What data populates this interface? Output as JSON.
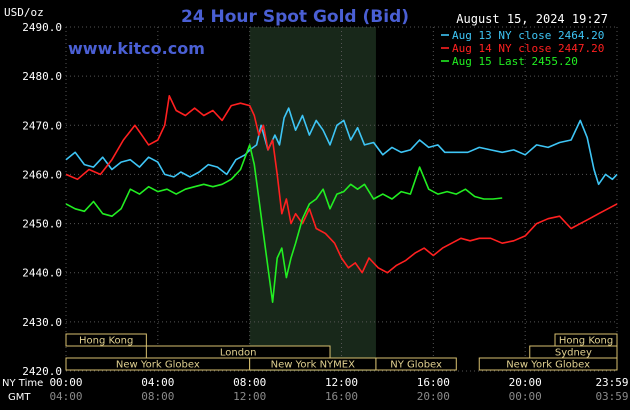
{
  "header": {
    "units": "USD/oz",
    "title": "24 Hour Spot Gold (Bid)",
    "date": "August 15, 2024 19:27",
    "site": "www.kitco.com"
  },
  "colors": {
    "background": "#000000",
    "title": "#4a5fd4",
    "axis_text": "#ffffff",
    "grid": "#555555",
    "shaded_region": "#18281a",
    "band_fill": "#000000",
    "band_border": "#d8c070",
    "band_text": "#e0d090",
    "time_text": "#ffffff",
    "gmt_text": "#8a8a8a"
  },
  "chart_data": {
    "type": "line",
    "ylim": [
      2420,
      2490
    ],
    "yticks": [
      "2490.0",
      "2480.0",
      "2470.0",
      "2460.0",
      "2450.0",
      "2440.0",
      "2430.0",
      "2420.0"
    ],
    "xlim": [
      0,
      24
    ],
    "shaded_hours": [
      8.0,
      13.5
    ],
    "legend": {
      "position": "top-right"
    },
    "series": [
      {
        "name": "Aug 13 NY close 2464.20",
        "color": "#3ec5f5",
        "points": [
          [
            0,
            2463
          ],
          [
            0.4,
            2464.5
          ],
          [
            0.8,
            2462
          ],
          [
            1.2,
            2461.5
          ],
          [
            1.6,
            2463.5
          ],
          [
            2,
            2461
          ],
          [
            2.4,
            2462.5
          ],
          [
            2.8,
            2463
          ],
          [
            3.2,
            2461.5
          ],
          [
            3.6,
            2463.5
          ],
          [
            4,
            2462.5
          ],
          [
            4.3,
            2460
          ],
          [
            4.7,
            2459.5
          ],
          [
            5,
            2460.5
          ],
          [
            5.4,
            2459.5
          ],
          [
            5.8,
            2460.5
          ],
          [
            6.2,
            2462
          ],
          [
            6.6,
            2461.5
          ],
          [
            7,
            2460
          ],
          [
            7.4,
            2463
          ],
          [
            7.8,
            2464
          ],
          [
            8,
            2465
          ],
          [
            8.3,
            2466
          ],
          [
            8.5,
            2470
          ],
          [
            8.8,
            2465
          ],
          [
            9.1,
            2468
          ],
          [
            9.3,
            2466
          ],
          [
            9.5,
            2471.5
          ],
          [
            9.7,
            2473.5
          ],
          [
            10,
            2469
          ],
          [
            10.3,
            2472
          ],
          [
            10.6,
            2468
          ],
          [
            10.9,
            2471
          ],
          [
            11.2,
            2469
          ],
          [
            11.5,
            2466
          ],
          [
            11.8,
            2470
          ],
          [
            12.1,
            2471
          ],
          [
            12.4,
            2467
          ],
          [
            12.7,
            2469.5
          ],
          [
            13,
            2466
          ],
          [
            13.4,
            2466.5
          ],
          [
            13.8,
            2464
          ],
          [
            14.2,
            2465.5
          ],
          [
            14.6,
            2464.5
          ],
          [
            15,
            2465
          ],
          [
            15.4,
            2467
          ],
          [
            15.8,
            2465.5
          ],
          [
            16.2,
            2466
          ],
          [
            16.5,
            2464.5
          ],
          [
            17,
            2464.5
          ],
          [
            17.5,
            2464.5
          ],
          [
            18,
            2465.5
          ],
          [
            18.5,
            2465
          ],
          [
            19,
            2464.5
          ],
          [
            19.5,
            2465
          ],
          [
            20,
            2464
          ],
          [
            20.5,
            2466
          ],
          [
            21,
            2465.5
          ],
          [
            21.5,
            2466.5
          ],
          [
            22,
            2467
          ],
          [
            22.4,
            2471
          ],
          [
            22.7,
            2467.5
          ],
          [
            23,
            2461
          ],
          [
            23.2,
            2458
          ],
          [
            23.5,
            2460
          ],
          [
            23.8,
            2459
          ],
          [
            24,
            2460
          ]
        ]
      },
      {
        "name": "Aug 14 NY close 2447.20",
        "color": "#ff2020",
        "points": [
          [
            0,
            2460
          ],
          [
            0.5,
            2459
          ],
          [
            1,
            2461
          ],
          [
            1.5,
            2460
          ],
          [
            2,
            2463
          ],
          [
            2.5,
            2467
          ],
          [
            3,
            2470
          ],
          [
            3.3,
            2468
          ],
          [
            3.6,
            2466
          ],
          [
            4,
            2467
          ],
          [
            4.3,
            2470
          ],
          [
            4.5,
            2476
          ],
          [
            4.8,
            2473
          ],
          [
            5.2,
            2472
          ],
          [
            5.6,
            2473.5
          ],
          [
            6,
            2472
          ],
          [
            6.4,
            2473
          ],
          [
            6.8,
            2471
          ],
          [
            7.2,
            2474
          ],
          [
            7.6,
            2474.5
          ],
          [
            8,
            2474
          ],
          [
            8.2,
            2472
          ],
          [
            8.4,
            2468
          ],
          [
            8.6,
            2470
          ],
          [
            8.8,
            2465
          ],
          [
            9,
            2467
          ],
          [
            9.2,
            2460
          ],
          [
            9.4,
            2452
          ],
          [
            9.6,
            2455
          ],
          [
            9.8,
            2450
          ],
          [
            10,
            2452
          ],
          [
            10.3,
            2450
          ],
          [
            10.6,
            2453
          ],
          [
            10.9,
            2449
          ],
          [
            11.3,
            2448
          ],
          [
            11.7,
            2446
          ],
          [
            12,
            2443
          ],
          [
            12.3,
            2441
          ],
          [
            12.6,
            2442
          ],
          [
            12.9,
            2440
          ],
          [
            13.2,
            2443
          ],
          [
            13.6,
            2441
          ],
          [
            14,
            2440
          ],
          [
            14.4,
            2441.5
          ],
          [
            14.8,
            2442.5
          ],
          [
            15.2,
            2444
          ],
          [
            15.6,
            2445
          ],
          [
            16,
            2443.5
          ],
          [
            16.4,
            2445
          ],
          [
            16.8,
            2446
          ],
          [
            17.2,
            2447
          ],
          [
            17.6,
            2446.5
          ],
          [
            18,
            2447
          ],
          [
            18.5,
            2447
          ],
          [
            19,
            2446
          ],
          [
            19.5,
            2446.5
          ],
          [
            20,
            2447.5
          ],
          [
            20.5,
            2450
          ],
          [
            21,
            2451
          ],
          [
            21.5,
            2451.5
          ],
          [
            22,
            2449
          ],
          [
            22.4,
            2450
          ],
          [
            22.8,
            2451
          ],
          [
            23.2,
            2452
          ],
          [
            23.6,
            2453
          ],
          [
            24,
            2454
          ]
        ]
      },
      {
        "name": "Aug 15 Last 2455.20",
        "color": "#22ee22",
        "points": [
          [
            0,
            2454
          ],
          [
            0.4,
            2453
          ],
          [
            0.8,
            2452.5
          ],
          [
            1.2,
            2454.5
          ],
          [
            1.6,
            2452
          ],
          [
            2,
            2451.5
          ],
          [
            2.4,
            2453
          ],
          [
            2.8,
            2457
          ],
          [
            3.2,
            2456
          ],
          [
            3.6,
            2457.5
          ],
          [
            4,
            2456.5
          ],
          [
            4.4,
            2457
          ],
          [
            4.8,
            2456
          ],
          [
            5.2,
            2457
          ],
          [
            5.6,
            2457.5
          ],
          [
            6,
            2458
          ],
          [
            6.4,
            2457.5
          ],
          [
            6.8,
            2458
          ],
          [
            7.2,
            2459
          ],
          [
            7.6,
            2461
          ],
          [
            8,
            2466
          ],
          [
            8.2,
            2462
          ],
          [
            8.4,
            2455
          ],
          [
            8.6,
            2448
          ],
          [
            8.8,
            2441
          ],
          [
            9,
            2434
          ],
          [
            9.2,
            2443
          ],
          [
            9.4,
            2445
          ],
          [
            9.6,
            2439
          ],
          [
            9.8,
            2443
          ],
          [
            10,
            2446
          ],
          [
            10.3,
            2451
          ],
          [
            10.6,
            2454
          ],
          [
            10.9,
            2455
          ],
          [
            11.2,
            2457
          ],
          [
            11.5,
            2453
          ],
          [
            11.8,
            2456
          ],
          [
            12.1,
            2456.5
          ],
          [
            12.4,
            2458
          ],
          [
            12.7,
            2457
          ],
          [
            13,
            2458
          ],
          [
            13.4,
            2455
          ],
          [
            13.8,
            2456
          ],
          [
            14.2,
            2455
          ],
          [
            14.6,
            2456.5
          ],
          [
            15,
            2456
          ],
          [
            15.4,
            2461.5
          ],
          [
            15.8,
            2457
          ],
          [
            16.2,
            2456
          ],
          [
            16.6,
            2456.5
          ],
          [
            17,
            2456
          ],
          [
            17.4,
            2457
          ],
          [
            17.8,
            2455.5
          ],
          [
            18.2,
            2455
          ],
          [
            18.6,
            2455
          ],
          [
            19,
            2455.2
          ]
        ]
      }
    ]
  },
  "sessions": [
    {
      "label": "Hong Kong",
      "start": 0.0,
      "end": 3.5,
      "row": 0
    },
    {
      "label": "Hong Kong",
      "start": 21.3,
      "end": 24.0,
      "row": 0
    },
    {
      "label": "London",
      "start": 3.5,
      "end": 11.5,
      "row": 1
    },
    {
      "label": "Sydney",
      "start": 20.2,
      "end": 24.0,
      "row": 1
    },
    {
      "label": "New York Globex",
      "start": 0.0,
      "end": 8.0,
      "row": 2
    },
    {
      "label": "New York NYMEX",
      "start": 8.0,
      "end": 13.5,
      "row": 2
    },
    {
      "label": "NY Globex",
      "start": 13.5,
      "end": 17.0,
      "row": 2
    },
    {
      "label": "New York Globex",
      "start": 18.0,
      "end": 24.0,
      "row": 2
    }
  ],
  "time_axis": {
    "ny_label": "NY Time",
    "gmt_label": "GMT",
    "ny_ticks": [
      "00:00",
      "04:00",
      "08:00",
      "12:00",
      "16:00",
      "20:00",
      "23:59"
    ],
    "gmt_ticks": [
      "04:00",
      "08:00",
      "12:00",
      "16:00",
      "20:00",
      "00:00",
      "03:59"
    ]
  }
}
